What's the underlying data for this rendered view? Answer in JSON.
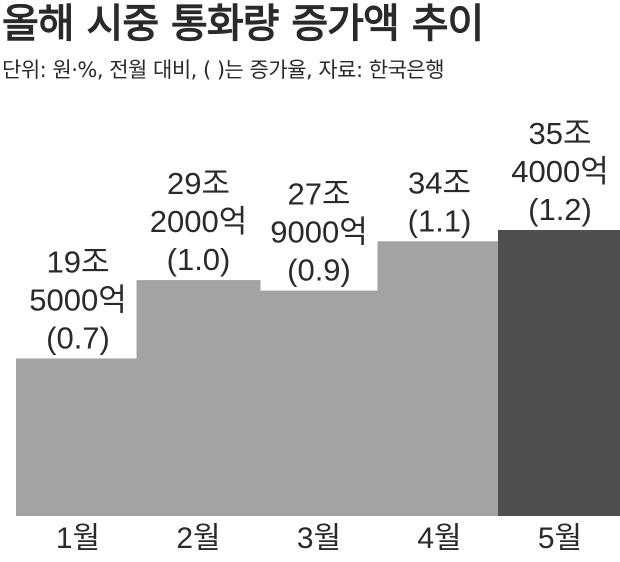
{
  "header": {
    "title": "올해 시중 통화량 증가액 추이",
    "subtitle": "단위: 원·%, 전월 대비, (    )는 증가율, 자료: 한국은행"
  },
  "colors": {
    "bar": "#a3a3a3",
    "bar_highlight": "#4f4f4f",
    "text": "#2a2a2a"
  },
  "chart_data": {
    "type": "bar",
    "title": "올해 시중 통화량 증가액 추이",
    "subtitle": "단위: 원·%, 전월 대비, (    )는 증가율, 자료: 한국은행",
    "categories": [
      "1월",
      "2월",
      "3월",
      "4월",
      "5월"
    ],
    "values": [
      195000,
      292000,
      279000,
      340000,
      354000
    ],
    "unit": "억 원",
    "growth_rates": [
      0.7,
      1.0,
      0.9,
      1.1,
      1.2
    ],
    "data_labels": [
      [
        "19조",
        "5000억",
        "(0.7)"
      ],
      [
        "29조",
        "2000억",
        "(1.0)"
      ],
      [
        "27조",
        "9000억",
        "(0.9)"
      ],
      [
        "34조",
        "(1.1)"
      ],
      [
        "35조",
        "4000억",
        "(1.2)"
      ]
    ],
    "highlight_index": 4,
    "ylim": [
      0,
      370000
    ],
    "xlabel": "",
    "ylabel": "",
    "grid": false,
    "legend": "none"
  }
}
